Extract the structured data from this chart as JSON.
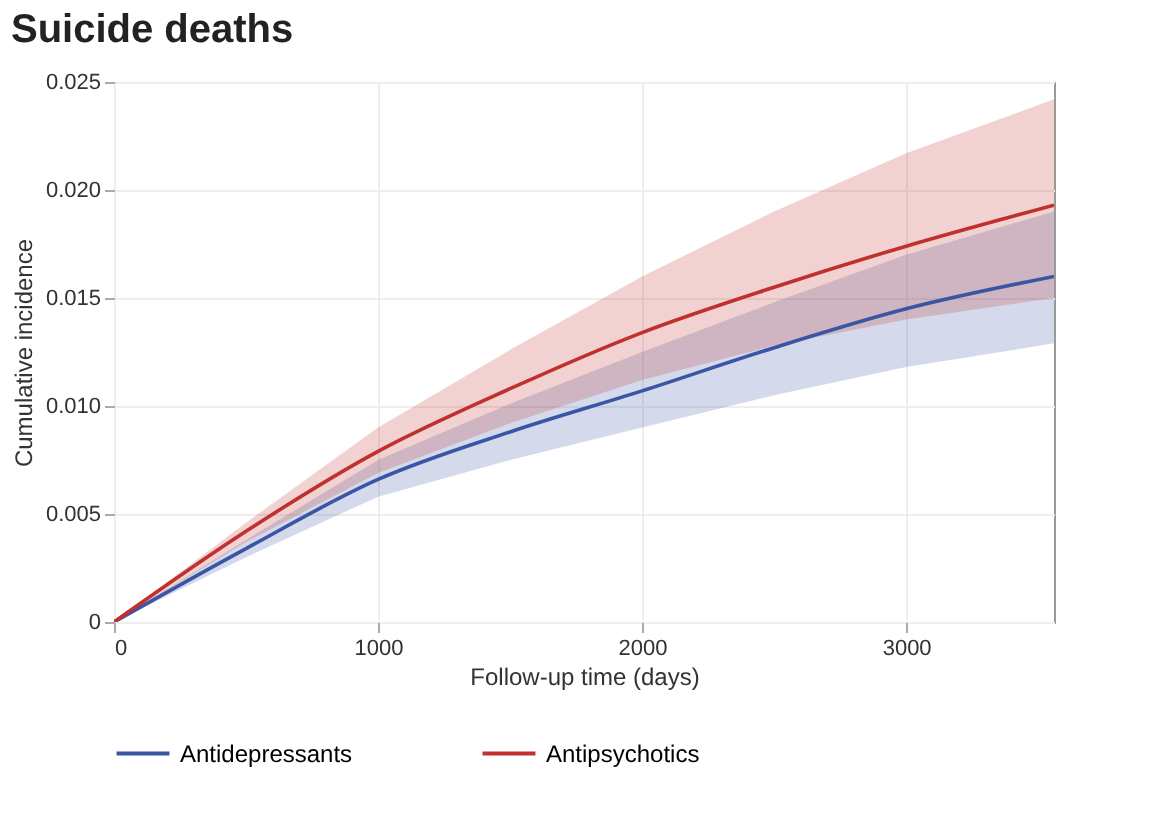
{
  "chart_data": {
    "type": "line",
    "title": "Suicide deaths",
    "xlabel": "Follow-up time (days)",
    "ylabel": "Cumulative incidence",
    "x": [
      0,
      500,
      1000,
      1500,
      2000,
      2500,
      3000,
      3560
    ],
    "series": [
      {
        "name": "Antidepressants",
        "color": "#3b55a5",
        "values": [
          0,
          0.0034,
          0.0066,
          0.0088,
          0.0107,
          0.0127,
          0.0145,
          0.016
        ],
        "lower": [
          0,
          0.003,
          0.0058,
          0.0075,
          0.009,
          0.0105,
          0.0118,
          0.0129
        ],
        "upper": [
          0,
          0.0038,
          0.0075,
          0.0101,
          0.0125,
          0.0148,
          0.017,
          0.019
        ]
      },
      {
        "name": "Antipsychotics",
        "color": "#c0302e",
        "values": [
          0,
          0.0042,
          0.0079,
          0.0108,
          0.0134,
          0.0155,
          0.0174,
          0.0193
        ],
        "lower": [
          0,
          0.0037,
          0.0069,
          0.0092,
          0.0112,
          0.0128,
          0.014,
          0.015
        ],
        "upper": [
          0,
          0.0046,
          0.009,
          0.0126,
          0.016,
          0.019,
          0.0217,
          0.0242
        ]
      }
    ],
    "xlim": [
      0,
      3560
    ],
    "ylim": [
      0,
      0.025
    ],
    "xticks": [
      0,
      1000,
      2000,
      3000
    ],
    "yticks": [
      {
        "value": 0,
        "label": "0"
      },
      {
        "value": 0.005,
        "label": "0.005"
      },
      {
        "value": 0.01,
        "label": "0.010"
      },
      {
        "value": 0.015,
        "label": "0.015"
      },
      {
        "value": 0.02,
        "label": "0.020"
      },
      {
        "value": 0.025,
        "label": "0.025"
      }
    ],
    "grid": true,
    "legend": "bottom",
    "marker": "none",
    "line_style": "solid"
  }
}
